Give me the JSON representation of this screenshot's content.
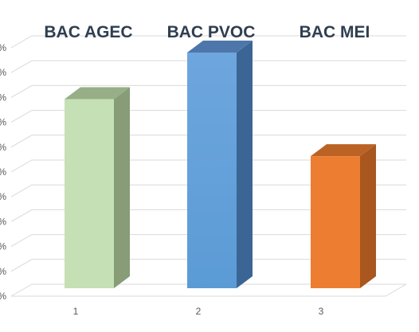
{
  "chart_data": {
    "type": "bar",
    "three_d": true,
    "categories": [
      "1",
      "2",
      "3"
    ],
    "values": [
      73,
      91,
      51
    ],
    "series_labels": [
      "BAC AGEC",
      "BAC PVOC",
      "BAC MEI"
    ],
    "ylim": [
      0,
      100
    ],
    "ytick_step": 10,
    "ytick_suffix": "%",
    "grid": true,
    "legend": "none",
    "colors": {
      "fronts": [
        "#c5e0b4",
        "#5b9bd5",
        "#ed7d31"
      ],
      "front_gradient_top": [
        "#c5e0b4",
        "#6ea6de",
        "#ed7d31"
      ],
      "sides": [
        "#879c77",
        "#3b6595",
        "#a9571f"
      ],
      "tops": [
        "#97af86",
        "#4d77aa",
        "#bb6325"
      ],
      "title_text": "#2f3e50",
      "grid": "#d9d9d9",
      "axis_text": "#595959"
    }
  }
}
